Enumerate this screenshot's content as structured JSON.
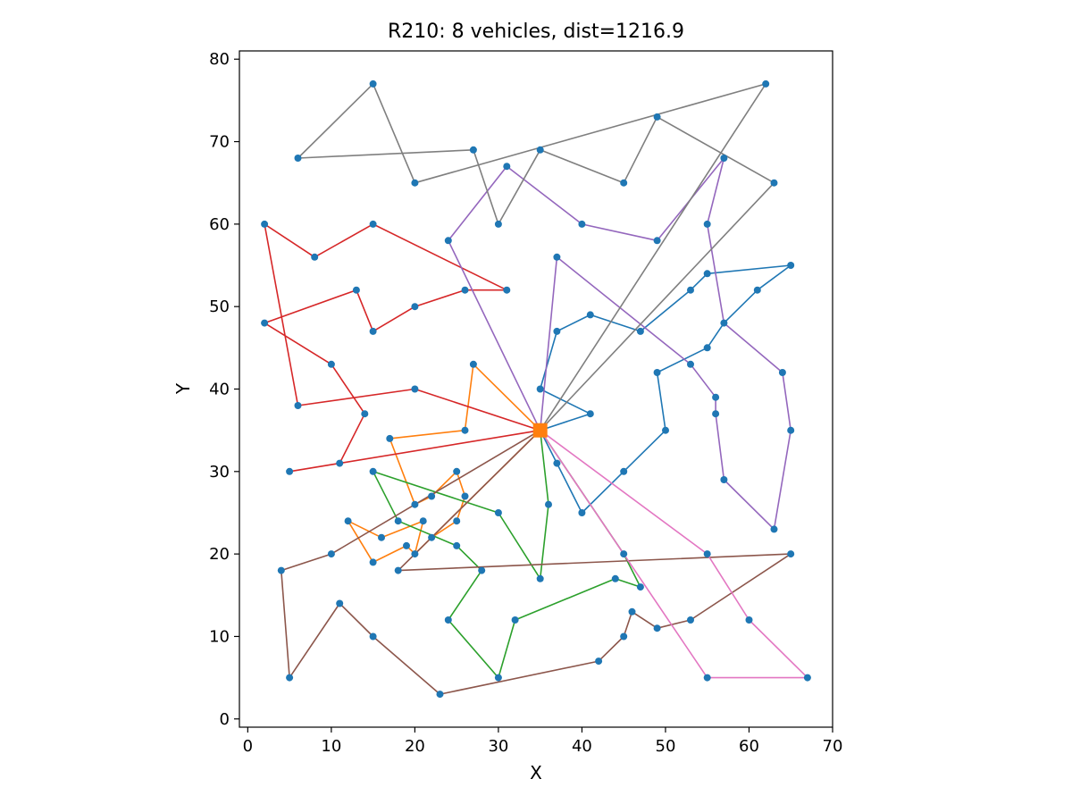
{
  "chart_data": {
    "type": "line",
    "title": "R210: 8 vehicles, dist=1216.9",
    "xlabel": "X",
    "ylabel": "Y",
    "xlim": [
      -1,
      70
    ],
    "ylim": [
      -1,
      81
    ],
    "xticks": [
      0,
      10,
      20,
      30,
      40,
      50,
      60,
      70
    ],
    "yticks": [
      0,
      10,
      20,
      30,
      40,
      50,
      60,
      70,
      80
    ],
    "grid": false,
    "legend": "none",
    "depot": {
      "x": 35,
      "y": 35,
      "color": "#ff7f0e"
    },
    "customer_color": "#1f77b4",
    "routes": [
      {
        "color": "#1f77b4",
        "points": [
          [
            35,
            35
          ],
          [
            41,
            37
          ],
          [
            35,
            40
          ],
          [
            37,
            47
          ],
          [
            41,
            49
          ],
          [
            47,
            47
          ],
          [
            53,
            52
          ],
          [
            55,
            54
          ],
          [
            65,
            55
          ],
          [
            61,
            52
          ],
          [
            57,
            48
          ],
          [
            55,
            45
          ],
          [
            49,
            42
          ],
          [
            50,
            35
          ],
          [
            45,
            30
          ],
          [
            40,
            25
          ],
          [
            37,
            31
          ],
          [
            35,
            35
          ]
        ]
      },
      {
        "color": "#ff7f0e",
        "points": [
          [
            35,
            35
          ],
          [
            27,
            43
          ],
          [
            26,
            35
          ],
          [
            17,
            34
          ],
          [
            20,
            26
          ],
          [
            22,
            27
          ],
          [
            25,
            30
          ],
          [
            26,
            27
          ],
          [
            25,
            24
          ],
          [
            22,
            22
          ],
          [
            20,
            20
          ],
          [
            19,
            21
          ],
          [
            15,
            19
          ],
          [
            12,
            24
          ],
          [
            16,
            22
          ],
          [
            21,
            24
          ],
          [
            20,
            20
          ],
          [
            35,
            35
          ]
        ]
      },
      {
        "color": "#2ca02c",
        "points": [
          [
            35,
            35
          ],
          [
            36,
            26
          ],
          [
            35,
            17
          ],
          [
            30,
            25
          ],
          [
            15,
            30
          ],
          [
            18,
            24
          ],
          [
            25,
            21
          ],
          [
            28,
            18
          ],
          [
            24,
            12
          ],
          [
            30,
            5
          ],
          [
            32,
            12
          ],
          [
            44,
            17
          ],
          [
            47,
            16
          ],
          [
            45,
            20
          ],
          [
            35,
            35
          ]
        ]
      },
      {
        "color": "#d62728",
        "points": [
          [
            35,
            35
          ],
          [
            20,
            40
          ],
          [
            6,
            38
          ],
          [
            2,
            60
          ],
          [
            8,
            56
          ],
          [
            15,
            60
          ],
          [
            31,
            52
          ],
          [
            26,
            52
          ],
          [
            20,
            50
          ],
          [
            15,
            47
          ],
          [
            13,
            52
          ],
          [
            2,
            48
          ],
          [
            10,
            43
          ],
          [
            14,
            37
          ],
          [
            11,
            31
          ],
          [
            5,
            30
          ],
          [
            35,
            35
          ]
        ]
      },
      {
        "color": "#9467bd",
        "points": [
          [
            35,
            35
          ],
          [
            37,
            56
          ],
          [
            53,
            43
          ],
          [
            56,
            39
          ],
          [
            56,
            37
          ],
          [
            57,
            29
          ],
          [
            63,
            23
          ],
          [
            65,
            35
          ],
          [
            64,
            42
          ],
          [
            57,
            48
          ],
          [
            55,
            60
          ],
          [
            57,
            68
          ],
          [
            49,
            58
          ],
          [
            40,
            60
          ],
          [
            31,
            67
          ],
          [
            24,
            58
          ],
          [
            35,
            35
          ]
        ]
      },
      {
        "color": "#8c564b",
        "points": [
          [
            35,
            35
          ],
          [
            22,
            22
          ],
          [
            18,
            18
          ],
          [
            65,
            20
          ],
          [
            53,
            12
          ],
          [
            49,
            11
          ],
          [
            46,
            13
          ],
          [
            45,
            10
          ],
          [
            42,
            7
          ],
          [
            23,
            3
          ],
          [
            15,
            10
          ],
          [
            11,
            14
          ],
          [
            5,
            5
          ],
          [
            4,
            18
          ],
          [
            10,
            20
          ],
          [
            35,
            35
          ]
        ]
      },
      {
        "color": "#e377c2",
        "points": [
          [
            35,
            35
          ],
          [
            55,
            20
          ],
          [
            60,
            12
          ],
          [
            67,
            5
          ],
          [
            55,
            5
          ],
          [
            35,
            35
          ]
        ]
      },
      {
        "color": "#7f7f7f",
        "points": [
          [
            35,
            35
          ],
          [
            63,
            65
          ],
          [
            49,
            73
          ],
          [
            45,
            65
          ],
          [
            35,
            69
          ],
          [
            30,
            60
          ],
          [
            27,
            69
          ],
          [
            6,
            68
          ],
          [
            15,
            77
          ],
          [
            20,
            65
          ],
          [
            62,
            77
          ],
          [
            35,
            35
          ]
        ]
      }
    ]
  }
}
